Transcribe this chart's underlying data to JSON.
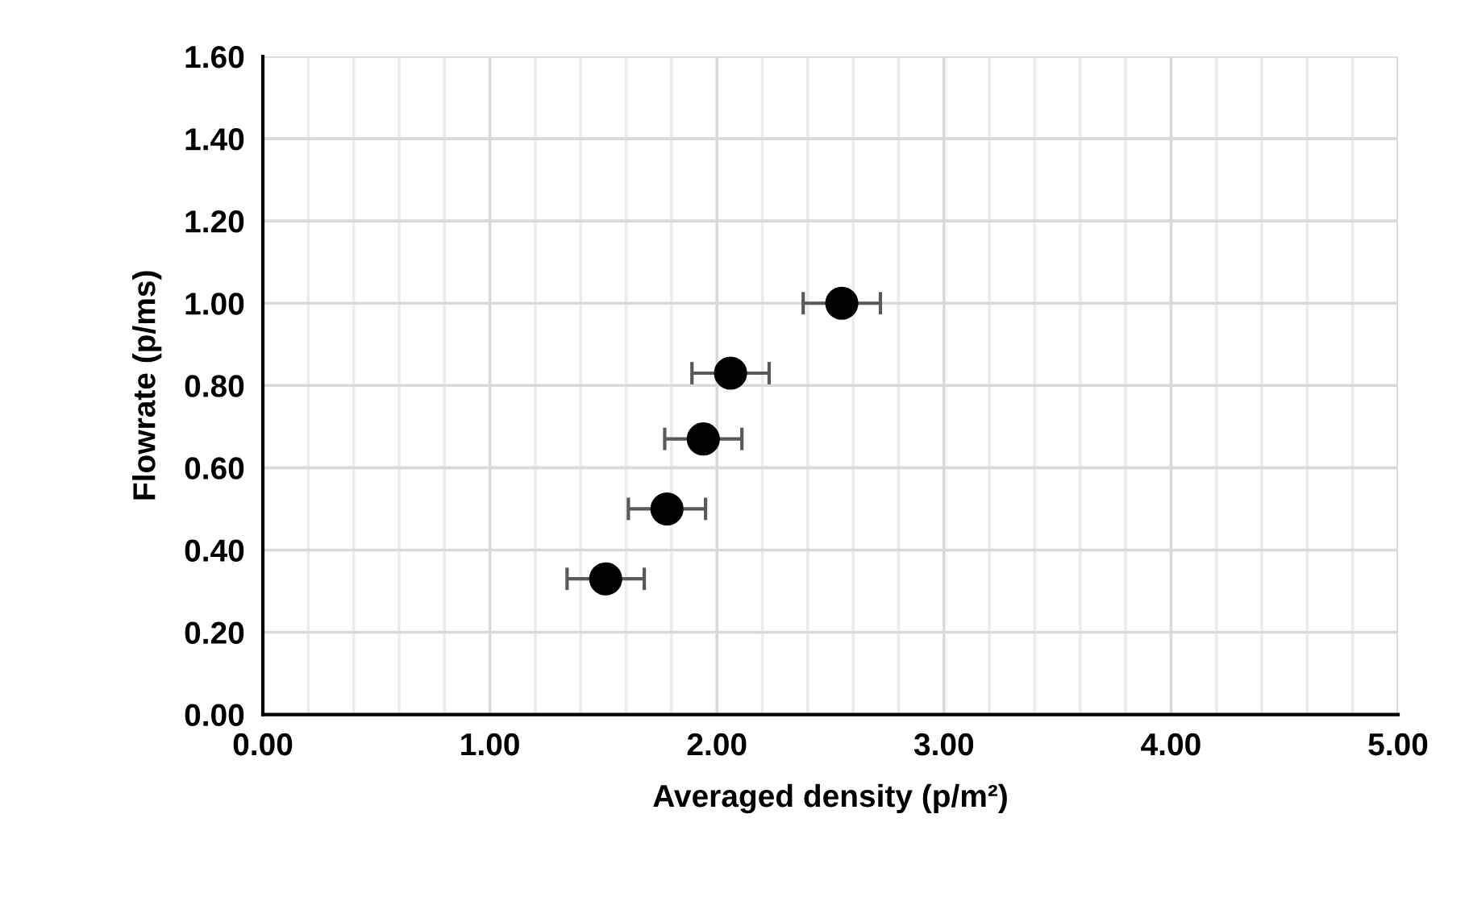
{
  "chart_data": {
    "type": "scatter",
    "xlabel": "Averaged density (p/m²)",
    "ylabel": "Flowrate (p/ms)",
    "x": [
      2.55,
      2.06,
      1.94,
      1.78,
      1.51
    ],
    "series": [
      {
        "color": "#000000",
        "values": [
          1.0,
          0.83,
          0.67,
          0.5,
          0.33
        ],
        "xerrors": [
          0.17,
          0.17,
          0.17,
          0.17,
          0.17
        ]
      }
    ],
    "xlim": [
      0,
      5
    ],
    "ylim": [
      0,
      1.6
    ],
    "xticks": [
      {
        "value": 0,
        "label": "0.00"
      },
      {
        "value": 0.2,
        "label": null
      },
      {
        "value": 0.4,
        "label": null
      },
      {
        "value": 0.6,
        "label": null
      },
      {
        "value": 0.8,
        "label": null
      },
      {
        "value": 1,
        "label": "1.00"
      },
      {
        "value": 1.2,
        "label": null
      },
      {
        "value": 1.4,
        "label": null
      },
      {
        "value": 1.6,
        "label": null
      },
      {
        "value": 1.8,
        "label": null
      },
      {
        "value": 2,
        "label": "2.00"
      },
      {
        "value": 2.2,
        "label": null
      },
      {
        "value": 2.4,
        "label": null
      },
      {
        "value": 2.6,
        "label": null
      },
      {
        "value": 2.8,
        "label": null
      },
      {
        "value": 3,
        "label": "3.00"
      },
      {
        "value": 3.2,
        "label": null
      },
      {
        "value": 3.4,
        "label": null
      },
      {
        "value": 3.6,
        "label": null
      },
      {
        "value": 3.8,
        "label": null
      },
      {
        "value": 4,
        "label": "4.00"
      },
      {
        "value": 4.2,
        "label": null
      },
      {
        "value": 4.4,
        "label": null
      },
      {
        "value": 4.6,
        "label": null
      },
      {
        "value": 4.8,
        "label": null
      },
      {
        "value": 5,
        "label": "5.00"
      }
    ],
    "yticks": [
      {
        "value": 0,
        "label": "0.00"
      },
      {
        "value": 0.2,
        "label": "0.20"
      },
      {
        "value": 0.4,
        "label": "0.40"
      },
      {
        "value": 0.6,
        "label": "0.60"
      },
      {
        "value": 0.8,
        "label": "0.80"
      },
      {
        "value": 1,
        "label": "1.00"
      },
      {
        "value": 1.2,
        "label": "1.20"
      },
      {
        "value": 1.4,
        "label": "1.40"
      },
      {
        "value": 1.6,
        "label": "1.60"
      }
    ],
    "grid": true,
    "marker": "circle",
    "legend": false
  }
}
